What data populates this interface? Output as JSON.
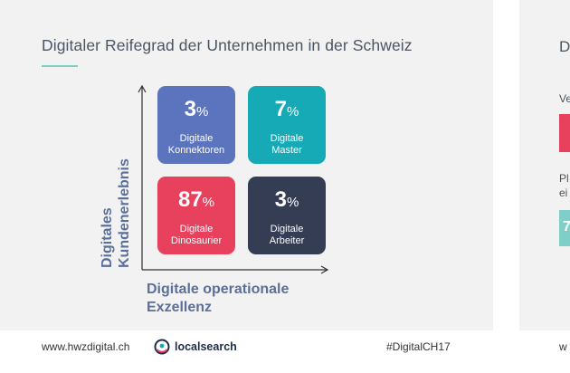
{
  "slide": {
    "title": "Digitaler Reifegrad der Unternehmen in der Schweiz",
    "y_axis_label_line1": "Digitales",
    "y_axis_label_line2": "Kundenerlebnis",
    "x_axis_label_line1": "Digitale operationale",
    "x_axis_label_line2": "Exzellenz",
    "quadrants": [
      {
        "value": "3",
        "unit": "%",
        "line1": "Digitale",
        "line2": "Konnektoren",
        "color": "#5b74bd"
      },
      {
        "value": "7",
        "unit": "%",
        "line1": "Digitale",
        "line2": "Master",
        "color": "#16a9b6"
      },
      {
        "value": "87",
        "unit": "%",
        "line1": "Digitale",
        "line2": "Dinosaurier",
        "color": "#e8415d"
      },
      {
        "value": "3",
        "unit": "%",
        "line1": "Digitale",
        "line2": "Arbeiter",
        "color": "#353d55"
      }
    ]
  },
  "footer": {
    "url": "www.hwzdigital.ch",
    "brand": "localsearch",
    "hashtag": "#DigitalCH17",
    "next_url_fragment": "w"
  },
  "next_slide": {
    "title_fragment": "D",
    "text1_fragment": "Ve",
    "text2_fragment": "Pl",
    "text3_fragment": "ei",
    "value_fragment": "7",
    "red": "#e8415d",
    "teal": "#7fcfc8"
  }
}
